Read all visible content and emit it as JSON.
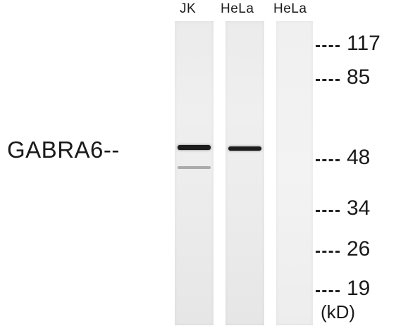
{
  "lanes": [
    {
      "label": "JK"
    },
    {
      "label": "HeLa"
    },
    {
      "label": "HeLa"
    }
  ],
  "protein": {
    "label": "GABRA6--"
  },
  "markers": [
    "117",
    "85",
    "48",
    "34",
    "26",
    "19"
  ],
  "unit": "(kD)"
}
